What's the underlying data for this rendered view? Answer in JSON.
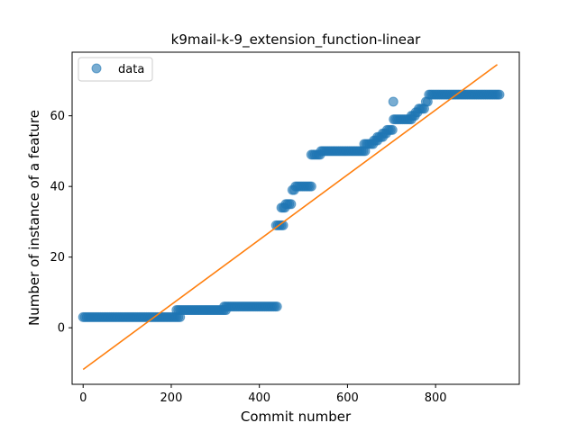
{
  "chart_data": {
    "type": "scatter",
    "title": "k9mail-k-9_extension_function-linear",
    "xlabel": "Commit number",
    "ylabel": "Number of instance of a feature",
    "xlim": [
      -25,
      990
    ],
    "ylim": [
      -16,
      78
    ],
    "xticks": [
      0,
      200,
      400,
      600,
      800
    ],
    "yticks": [
      0,
      20,
      40,
      60
    ],
    "grid": false,
    "legend": {
      "position": "top-left",
      "entries": [
        "data"
      ]
    },
    "colors": {
      "data": "#1f77b4",
      "fit": "#ff7f0e"
    },
    "series": [
      {
        "name": "data",
        "kind": "scatter",
        "runs": [
          {
            "x_start": 0,
            "x_end": 220,
            "step": 4,
            "y": 3
          },
          {
            "x_start": 212,
            "x_end": 325,
            "step": 4,
            "y": 5
          },
          {
            "x_start": 320,
            "x_end": 440,
            "step": 4,
            "y": 6
          },
          {
            "x_start": 438,
            "x_end": 455,
            "step": 4,
            "y": 29
          },
          {
            "x_start": 450,
            "x_end": 458,
            "step": 4,
            "y": 34
          },
          {
            "x_start": 460,
            "x_end": 475,
            "step": 4,
            "y": 35
          },
          {
            "x_start": 475,
            "x_end": 480,
            "step": 4,
            "y": 39
          },
          {
            "x_start": 482,
            "x_end": 520,
            "step": 4,
            "y": 40
          },
          {
            "x_start": 518,
            "x_end": 540,
            "step": 4,
            "y": 49
          },
          {
            "x_start": 540,
            "x_end": 640,
            "step": 4,
            "y": 50
          },
          {
            "x_start": 638,
            "x_end": 660,
            "step": 4,
            "y": 52
          },
          {
            "x_start": 660,
            "x_end": 668,
            "step": 4,
            "y": 53
          },
          {
            "x_start": 668,
            "x_end": 680,
            "step": 4,
            "y": 54
          },
          {
            "x_start": 680,
            "x_end": 690,
            "step": 4,
            "y": 55
          },
          {
            "x_start": 690,
            "x_end": 705,
            "step": 4,
            "y": 56
          },
          {
            "x_start": 705,
            "x_end": 745,
            "step": 4,
            "y": 59
          },
          {
            "x_start": 745,
            "x_end": 755,
            "step": 4,
            "y": 60
          },
          {
            "x_start": 755,
            "x_end": 762,
            "step": 4,
            "y": 61
          },
          {
            "x_start": 762,
            "x_end": 775,
            "step": 4,
            "y": 62
          },
          {
            "x_start": 778,
            "x_end": 785,
            "step": 4,
            "y": 64
          },
          {
            "x_start": 785,
            "x_end": 945,
            "step": 4,
            "y": 66
          }
        ],
        "points": [
          {
            "x": 704,
            "y": 64
          }
        ]
      },
      {
        "name": "",
        "kind": "line",
        "x": [
          0,
          940
        ],
        "y": [
          -11.8,
          74.5
        ]
      }
    ]
  }
}
